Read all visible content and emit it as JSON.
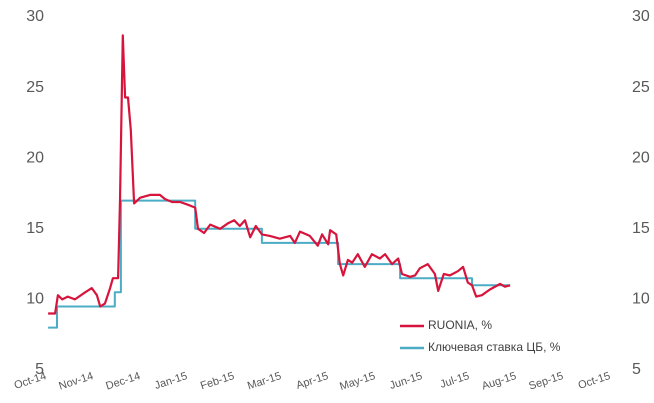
{
  "chart_data": {
    "type": "line",
    "xlim": [
      0,
      12
    ],
    "xticks": [
      {
        "value": 0,
        "label": "Oct-14"
      },
      {
        "value": 1,
        "label": "Nov-14"
      },
      {
        "value": 2,
        "label": "Dec-14"
      },
      {
        "value": 3,
        "label": "Jan-15"
      },
      {
        "value": 4,
        "label": "Feb-15"
      },
      {
        "value": 5,
        "label": "Mar-15"
      },
      {
        "value": 6,
        "label": "Apr-15"
      },
      {
        "value": 7,
        "label": "May-15"
      },
      {
        "value": 8,
        "label": "Jun-15"
      },
      {
        "value": 9,
        "label": "Jul-15"
      },
      {
        "value": 10,
        "label": "Aug-15"
      },
      {
        "value": 11,
        "label": "Sep-15"
      },
      {
        "value": 12,
        "label": "Oct-15"
      }
    ],
    "ylim": [
      5,
      30
    ],
    "yticks": [
      5,
      10,
      15,
      20,
      25,
      30
    ],
    "y2lim": [
      5,
      30
    ],
    "y2ticks": [
      5,
      10,
      15,
      20,
      25,
      30
    ],
    "grid": false,
    "legend": "lower right",
    "series": [
      {
        "name": "RUONIA, %",
        "color": "#d7143c",
        "x": [
          0.98,
          1.13,
          1.19,
          1.28,
          1.4,
          1.55,
          1.77,
          1.91,
          2.02,
          2.09,
          2.19,
          2.3,
          2.36,
          2.47,
          2.51,
          2.57,
          2.62,
          2.68,
          2.74,
          2.81,
          2.94,
          3.15,
          3.36,
          3.47,
          3.62,
          3.79,
          3.96,
          4.11,
          4.17,
          4.3,
          4.43,
          4.64,
          4.81,
          4.94,
          5.06,
          5.17,
          5.28,
          5.4,
          5.53,
          5.7,
          5.91,
          6.13,
          6.23,
          6.34,
          6.55,
          6.72,
          6.81,
          6.94,
          6.98,
          7.11,
          7.19,
          7.26,
          7.36,
          7.45,
          7.57,
          7.72,
          7.87,
          8.04,
          8.15,
          8.3,
          8.43,
          8.51,
          8.68,
          8.79,
          8.89,
          9.06,
          9.21,
          9.28,
          9.4,
          9.53,
          9.7,
          9.81,
          9.91,
          10.0,
          10.09,
          10.21,
          10.38,
          10.6,
          10.7,
          10.81
        ],
        "values": [
          9.0,
          9.0,
          10.3,
          10.0,
          10.2,
          10.0,
          10.5,
          10.8,
          10.3,
          9.5,
          9.7,
          10.8,
          11.5,
          11.5,
          17,
          28.7,
          24.3,
          24.3,
          22,
          16.8,
          17.2,
          17.4,
          17.4,
          17.1,
          16.9,
          16.9,
          16.7,
          16.5,
          15,
          14.7,
          15.3,
          15,
          15.4,
          15.6,
          15.2,
          15.6,
          14.4,
          15.2,
          14.6,
          14.5,
          14.3,
          14.5,
          14.0,
          14.8,
          14.5,
          13.8,
          14.6,
          13.9,
          14.9,
          14.6,
          12.5,
          11.7,
          12.8,
          12.6,
          13.2,
          12.3,
          13.2,
          12.9,
          13.2,
          12.5,
          12.9,
          11.8,
          11.6,
          11.7,
          12.2,
          12.5,
          11.8,
          10.6,
          11.8,
          11.7,
          12.0,
          12.3,
          11.2,
          11.0,
          10.2,
          10.3,
          10.7,
          11.1,
          10.9,
          11.0
        ]
      },
      {
        "name": "Ключевая ставка ЦБ, %",
        "color": "#4bacc6",
        "x": [
          0.98,
          1.17,
          1.17,
          2.4,
          2.4,
          2.53,
          2.53,
          4.11,
          4.11,
          5.53,
          5.53,
          7.15,
          7.15,
          8.47,
          8.47,
          10.0,
          10.0,
          10.81
        ],
        "values": [
          8,
          8,
          9.5,
          9.5,
          10.5,
          10.5,
          17,
          17,
          15,
          15,
          14,
          14,
          12.5,
          12.5,
          11.5,
          11.5,
          11,
          11
        ]
      }
    ]
  }
}
